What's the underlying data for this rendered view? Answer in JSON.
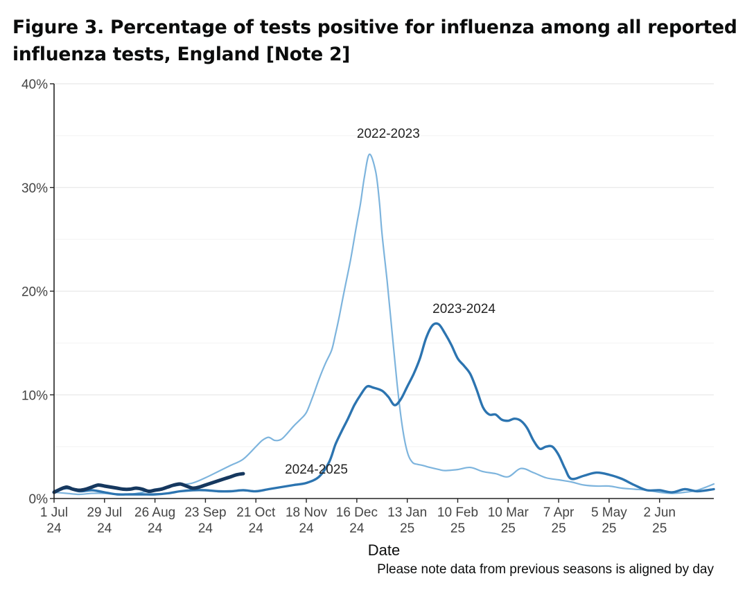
{
  "title": "Figure 3. Percentage of tests positive for influenza among all reported influenza tests, England [Note 2]",
  "note": "Please note data from previous seasons is aligned by day",
  "colors": {
    "2022-2023": "#7db4dd",
    "2023-2024": "#2c74b0",
    "2024-2025": "#16385f",
    "grid": "#e8e8e8",
    "axis": "#222222"
  },
  "chart_data": {
    "type": "line",
    "title": "Figure 3. Percentage of tests positive for influenza among all reported influenza tests, England [Note 2]",
    "xlabel": "Date",
    "ylabel": "",
    "x_unit": "weeks since 1 Jul",
    "xlim": [
      0,
      52.3
    ],
    "ylim": [
      0,
      40
    ],
    "grid": true,
    "y_ticks": [
      {
        "value": 0,
        "label": "0%"
      },
      {
        "value": 10,
        "label": "10%"
      },
      {
        "value": 20,
        "label": "20%"
      },
      {
        "value": 30,
        "label": "30%"
      },
      {
        "value": 40,
        "label": "40%"
      }
    ],
    "x_ticks": [
      {
        "value": 0,
        "line1": "1 Jul",
        "line2": "24"
      },
      {
        "value": 4,
        "line1": "29 Jul",
        "line2": "24"
      },
      {
        "value": 8,
        "line1": "26 Aug",
        "line2": "24"
      },
      {
        "value": 12,
        "line1": "23 Sep",
        "line2": "24"
      },
      {
        "value": 16,
        "line1": "21 Oct",
        "line2": "24"
      },
      {
        "value": 20,
        "line1": "18 Nov",
        "line2": "24"
      },
      {
        "value": 24,
        "line1": "16 Dec",
        "line2": "24"
      },
      {
        "value": 28,
        "line1": "13 Jan",
        "line2": "25"
      },
      {
        "value": 32,
        "line1": "10 Feb",
        "line2": "25"
      },
      {
        "value": 36,
        "line1": "10 Mar",
        "line2": "25"
      },
      {
        "value": 40,
        "line1": "7 Apr",
        "line2": "25"
      },
      {
        "value": 44,
        "line1": "5 May",
        "line2": "25"
      },
      {
        "value": 48,
        "line1": "2 Jun",
        "line2": "25"
      }
    ],
    "series": [
      {
        "name": "2022-2023",
        "label_at": [
          26.5,
          34.8
        ],
        "x": [
          0,
          1,
          2,
          3,
          4,
          5,
          6,
          7,
          8,
          9,
          10,
          11,
          12,
          13,
          14,
          15,
          16,
          16.5,
          17,
          17.5,
          18,
          18.5,
          19,
          19.5,
          20,
          20.5,
          21,
          21.5,
          22,
          22.3,
          22.6,
          23,
          23.5,
          24,
          24.3,
          24.6,
          25,
          25.5,
          25.8,
          26,
          26.4,
          26.8,
          27.2,
          27.6,
          28,
          28.4,
          28.8,
          29.2,
          29.8,
          30.5,
          31,
          32,
          33,
          34,
          35,
          36,
          37,
          38,
          39,
          40,
          41,
          42,
          43,
          44,
          45,
          46,
          47,
          48,
          49,
          50,
          51,
          52.3
        ],
        "y": [
          0.6,
          0.5,
          0.4,
          0.5,
          0.5,
          0.4,
          0.4,
          0.6,
          0.9,
          1.1,
          1.3,
          1.5,
          2.0,
          2.6,
          3.2,
          3.8,
          5.0,
          5.6,
          5.9,
          5.6,
          5.7,
          6.3,
          7.0,
          7.6,
          8.3,
          9.8,
          11.5,
          13.0,
          14.3,
          15.8,
          17.5,
          20.0,
          23.0,
          26.5,
          28.5,
          31.0,
          33.2,
          31.5,
          28.5,
          25.5,
          21.0,
          16.0,
          11.0,
          7.0,
          4.5,
          3.5,
          3.3,
          3.2,
          3.0,
          2.8,
          2.7,
          2.8,
          3.0,
          2.6,
          2.4,
          2.1,
          2.9,
          2.5,
          2.0,
          1.8,
          1.6,
          1.3,
          1.2,
          1.2,
          1.0,
          0.9,
          0.8,
          0.6,
          0.5,
          0.6,
          0.8,
          1.4
        ]
      },
      {
        "name": "2023-2024",
        "label_at": [
          32.5,
          17.9
        ],
        "x": [
          0,
          1,
          2,
          3,
          4,
          5,
          6,
          7,
          8,
          9,
          10,
          11,
          12,
          13,
          14,
          15,
          16,
          17,
          18,
          19,
          20,
          21,
          21.8,
          22.3,
          22.8,
          23.3,
          23.8,
          24.3,
          24.8,
          25.3,
          26,
          26.5,
          27,
          27.5,
          28,
          28.5,
          29,
          29.5,
          30,
          30.5,
          31,
          31.5,
          32,
          32.5,
          33,
          33.5,
          34,
          34.5,
          35,
          35.5,
          36,
          36.5,
          37,
          37.5,
          38,
          38.5,
          39,
          39.5,
          40,
          40.5,
          41,
          42,
          43,
          44,
          45,
          46,
          47,
          48,
          49,
          50,
          51,
          52.3
        ],
        "y": [
          0.7,
          1.0,
          0.7,
          0.8,
          0.6,
          0.4,
          0.4,
          0.4,
          0.4,
          0.5,
          0.7,
          0.8,
          0.8,
          0.7,
          0.7,
          0.8,
          0.7,
          0.9,
          1.1,
          1.3,
          1.5,
          2.1,
          3.5,
          5.2,
          6.5,
          7.7,
          9.0,
          10.0,
          10.8,
          10.7,
          10.4,
          9.8,
          9.0,
          9.6,
          10.8,
          12.0,
          13.5,
          15.5,
          16.7,
          16.8,
          15.9,
          14.8,
          13.5,
          12.8,
          12.0,
          10.5,
          8.8,
          8.1,
          8.1,
          7.6,
          7.5,
          7.7,
          7.5,
          6.8,
          5.6,
          4.8,
          5.0,
          5.0,
          4.2,
          2.9,
          1.9,
          2.2,
          2.5,
          2.3,
          1.9,
          1.3,
          0.8,
          0.8,
          0.6,
          0.9,
          0.7,
          0.9
        ]
      },
      {
        "name": "2024-2025",
        "label_at": [
          18.3,
          2.4
        ],
        "x": [
          0,
          0.5,
          1,
          1.5,
          2,
          2.5,
          3,
          3.5,
          4,
          4.5,
          5,
          5.5,
          6,
          6.5,
          7,
          7.5,
          8,
          8.5,
          9,
          9.5,
          10,
          10.5,
          11,
          11.5,
          12,
          12.5,
          13,
          13.5,
          14,
          14.5,
          15
        ],
        "y": [
          0.6,
          0.9,
          1.1,
          0.9,
          0.8,
          0.9,
          1.1,
          1.3,
          1.2,
          1.1,
          1.0,
          0.9,
          0.9,
          1.0,
          0.9,
          0.7,
          0.8,
          0.9,
          1.1,
          1.3,
          1.4,
          1.2,
          1.0,
          1.1,
          1.3,
          1.5,
          1.7,
          1.9,
          2.1,
          2.3,
          2.4
        ]
      }
    ]
  }
}
